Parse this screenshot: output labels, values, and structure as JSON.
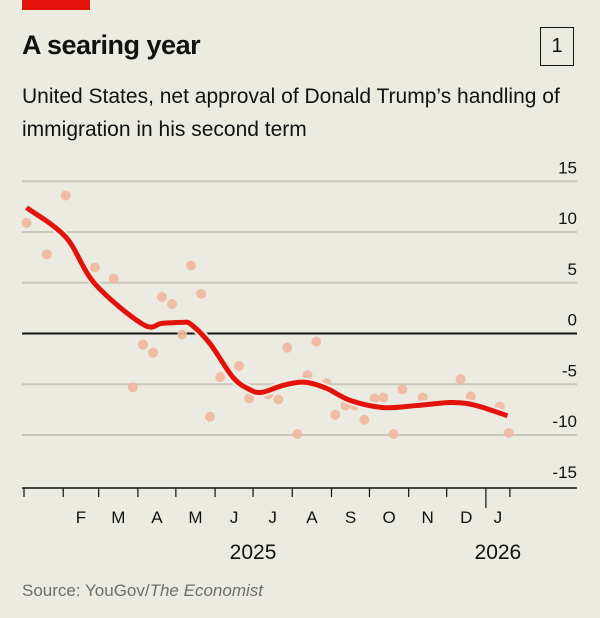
{
  "header": {
    "title": "A searing year",
    "badge": "1",
    "subtitle": "United States, net approval of Donald Trump’s handling of immigration in his second term"
  },
  "footer": {
    "source_prefix": "Source: YouGov/",
    "source_italic": "The Economist"
  },
  "colors": {
    "background": "#ECEBE1",
    "trend": "#E3120B",
    "points": "#EFB89E",
    "accent_bar": "#E3120B"
  },
  "chart_data": {
    "type": "scatter",
    "title": "A searing year",
    "subtitle": "United States, net approval of Donald Trump’s handling of immigration in his second term",
    "xlabel": "",
    "ylabel": "",
    "ylim": [
      -15,
      15
    ],
    "xlim": [
      "2025-01-01",
      "2026-03-14"
    ],
    "y_ticks": [
      15,
      10,
      5,
      0,
      -5,
      -10,
      -15
    ],
    "y_axis_side": "right",
    "grid": true,
    "x_month_labels": [
      "F",
      "M",
      "A",
      "M",
      "J",
      "J",
      "A",
      "S",
      "O",
      "N",
      "D",
      "J"
    ],
    "x_month_starts": [
      "2025-02-01",
      "2025-03-01",
      "2025-04-01",
      "2025-05-01",
      "2025-06-01",
      "2025-07-01",
      "2025-08-01",
      "2025-09-01",
      "2025-10-01",
      "2025-11-01",
      "2025-12-01",
      "2026-01-01"
    ],
    "x_year_labels": [
      {
        "label": "2025",
        "at": "2025-07-01"
      },
      {
        "label": "2026",
        "at": "2026-01-01"
      }
    ],
    "points": [
      [
        "2025-01-03",
        10.9
      ],
      [
        "2025-01-19",
        7.8
      ],
      [
        "2025-02-03",
        13.6
      ],
      [
        "2025-02-26",
        6.5
      ],
      [
        "2025-03-13",
        5.4
      ],
      [
        "2025-03-28",
        -5.3
      ],
      [
        "2025-04-05",
        -1.1
      ],
      [
        "2025-04-13",
        -1.9
      ],
      [
        "2025-04-20",
        3.6
      ],
      [
        "2025-04-28",
        2.9
      ],
      [
        "2025-05-06",
        -0.1
      ],
      [
        "2025-05-13",
        6.7
      ],
      [
        "2025-05-21",
        3.9
      ],
      [
        "2025-05-28",
        -8.2
      ],
      [
        "2025-06-05",
        -4.3
      ],
      [
        "2025-06-20",
        -3.2
      ],
      [
        "2025-06-28",
        -6.4
      ],
      [
        "2025-07-13",
        -6.0
      ],
      [
        "2025-07-21",
        -6.5
      ],
      [
        "2025-07-28",
        -1.4
      ],
      [
        "2025-08-05",
        -9.9
      ],
      [
        "2025-08-13",
        -4.1
      ],
      [
        "2025-08-20",
        -0.8
      ],
      [
        "2025-08-28",
        -4.9
      ],
      [
        "2025-09-04",
        -8.0
      ],
      [
        "2025-09-12",
        -7.1
      ],
      [
        "2025-09-19",
        -7.1
      ],
      [
        "2025-09-27",
        -8.5
      ],
      [
        "2025-10-05",
        -6.4
      ],
      [
        "2025-10-12",
        -6.3
      ],
      [
        "2025-10-20",
        -9.9
      ],
      [
        "2025-10-27",
        -5.5
      ],
      [
        "2025-11-12",
        -6.3
      ],
      [
        "2025-12-12",
        -4.5
      ],
      [
        "2025-12-20",
        -6.2
      ],
      [
        "2026-01-12",
        -7.2
      ],
      [
        "2026-01-19",
        -9.8
      ]
    ],
    "trend": [
      [
        "2025-01-03",
        12.4
      ],
      [
        "2025-02-03",
        9.5
      ],
      [
        "2025-02-26",
        4.9
      ],
      [
        "2025-04-05",
        0.9
      ],
      [
        "2025-04-20",
        1.0
      ],
      [
        "2025-05-06",
        1.1
      ],
      [
        "2025-05-13",
        0.9
      ],
      [
        "2025-05-28",
        -1.0
      ],
      [
        "2025-06-15",
        -4.3
      ],
      [
        "2025-06-28",
        -5.5
      ],
      [
        "2025-07-08",
        -5.8
      ],
      [
        "2025-07-25",
        -5.1
      ],
      [
        "2025-08-11",
        -4.8
      ],
      [
        "2025-08-28",
        -5.4
      ],
      [
        "2025-09-16",
        -6.6
      ],
      [
        "2025-10-12",
        -7.3
      ],
      [
        "2025-11-07",
        -7.1
      ],
      [
        "2025-12-03",
        -6.8
      ],
      [
        "2025-12-17",
        -6.9
      ],
      [
        "2025-12-30",
        -7.3
      ],
      [
        "2026-01-18",
        -8.1
      ]
    ]
  }
}
